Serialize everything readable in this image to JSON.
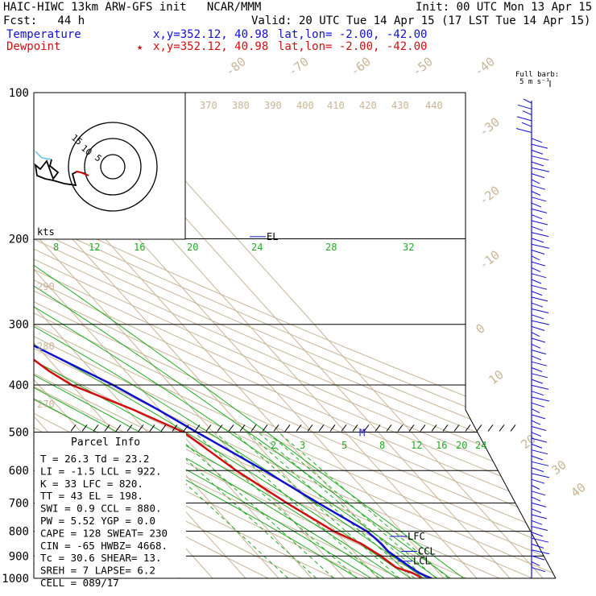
{
  "header": {
    "model_line": "HAIC-HIWC 13km ARW-GFS init   NCAR/MMM",
    "init_line": "Init: 00 UTC Mon 13 Apr 15",
    "fcst_line": "Fcst:   44 h",
    "valid_line": "Valid: 20 UTC Tue 14 Apr 15 (17 LST Tue 14 Apr 15)",
    "temperature_label": "Temperature",
    "temperature_xy": "x,y=352.12, 40.98",
    "temperature_latlon": "lat,lon= -2.00, -42.00",
    "dewpoint_label": "Dewpoint",
    "dewpoint_xy": "x,y=352.12, 40.98",
    "dewpoint_latlon": "lat,lon= -2.00, -42.00",
    "dewpoint_star": "★"
  },
  "barb_legend": {
    "line1": "Full barb:",
    "line2": "5 m s⁻¹"
  },
  "hodo_units": "kts",
  "levels": {
    "el": "EL",
    "lfc": "LFC",
    "ccl": "CCL",
    "lcl": "LCL",
    "m": "M"
  },
  "parcel": {
    "title": "Parcel Info",
    "rows": [
      "T  =   26.3 Td =  23.2",
      "LI =   -1.5 LCL =  922.",
      "K  =     33 LFC =  820.",
      "TT =     43 EL  =  198.",
      "SWI =   0.9 CCL =  880.",
      "PW =   5.52 YGP =   0.0",
      "CAPE =  128 SWEAT= 230",
      "CIN =   -65 HWBZ= 4668.",
      "Tc =   30.6 SHEAR=  13.",
      "SREH =    7 LAPSE=  6.2",
      "CELL = 089/17"
    ]
  },
  "colors": {
    "temperature": "#1010d0",
    "dewpoint": "#d01010",
    "isotherm": "#c8b496",
    "moist_adiabat": "#22aa22",
    "mixing_ratio": "#22aa22",
    "hodograph_cyan": "#60c8e0"
  },
  "chart_data": {
    "type": "skew-t",
    "pressure_axis": {
      "labels": [
        "100",
        "200",
        "300",
        "400",
        "500",
        "600",
        "700",
        "800",
        "900",
        "1000"
      ],
      "values": [
        100,
        200,
        300,
        400,
        500,
        600,
        700,
        800,
        900,
        1000
      ],
      "scale": "log"
    },
    "isotherm_labels": [
      "-80",
      "-70",
      "-60",
      "-50",
      "-40",
      "-30",
      "-20",
      "-10",
      "0",
      "10",
      "20",
      "30",
      "40"
    ],
    "theta_labels": [
      "370",
      "380",
      "390",
      "400",
      "410",
      "420",
      "430",
      "440",
      "290",
      "280",
      "270"
    ],
    "moist_adiabat_labels": [
      "8",
      "12",
      "16",
      "20",
      "24",
      "28",
      "32"
    ],
    "mixing_ratio_labels": [
      "2",
      "3",
      "5",
      "8",
      "12",
      "16",
      "20",
      "24"
    ],
    "hodograph_ring_labels": [
      "15",
      "10",
      "5"
    ],
    "series": [
      {
        "name": "Temperature",
        "points": [
          [
            1000,
            26.3
          ],
          [
            990,
            25.2
          ],
          [
            975,
            24.0
          ],
          [
            950,
            23.0
          ],
          [
            922,
            22.0
          ],
          [
            880,
            20.5
          ],
          [
            850,
            20.5
          ],
          [
            820,
            20.0
          ],
          [
            800,
            19.5
          ],
          [
            700,
            12.5
          ],
          [
            600,
            5.0
          ],
          [
            500,
            -5.0
          ],
          [
            450,
            -10.5
          ],
          [
            400,
            -17.5
          ],
          [
            350,
            -27.0
          ],
          [
            300,
            -38.0
          ],
          [
            250,
            -50.5
          ],
          [
            200,
            -62.0
          ],
          [
            175,
            -68.5
          ],
          [
            150,
            -74.0
          ],
          [
            125,
            -79.0
          ],
          [
            100,
            -86.0
          ]
        ]
      },
      {
        "name": "Dewpoint",
        "points": [
          [
            1000,
            23.2
          ],
          [
            990,
            23.0
          ],
          [
            975,
            22.0
          ],
          [
            950,
            18.5
          ],
          [
            900,
            17.0
          ],
          [
            850,
            14.5
          ],
          [
            800,
            9.5
          ],
          [
            700,
            3.0
          ],
          [
            600,
            -3.5
          ],
          [
            500,
            -9.0
          ],
          [
            450,
            -18.0
          ],
          [
            400,
            -30.0
          ],
          [
            375,
            -33.0
          ],
          [
            350,
            -35.0
          ],
          [
            300,
            -42.0
          ],
          [
            270,
            -50.0
          ],
          [
            240,
            -62.0
          ],
          [
            220,
            -70.0
          ],
          [
            200,
            -72.0
          ],
          [
            175,
            -79.0
          ],
          [
            150,
            -85.0
          ],
          [
            125,
            -84.0
          ],
          [
            100,
            -86.0
          ]
        ]
      }
    ]
  }
}
